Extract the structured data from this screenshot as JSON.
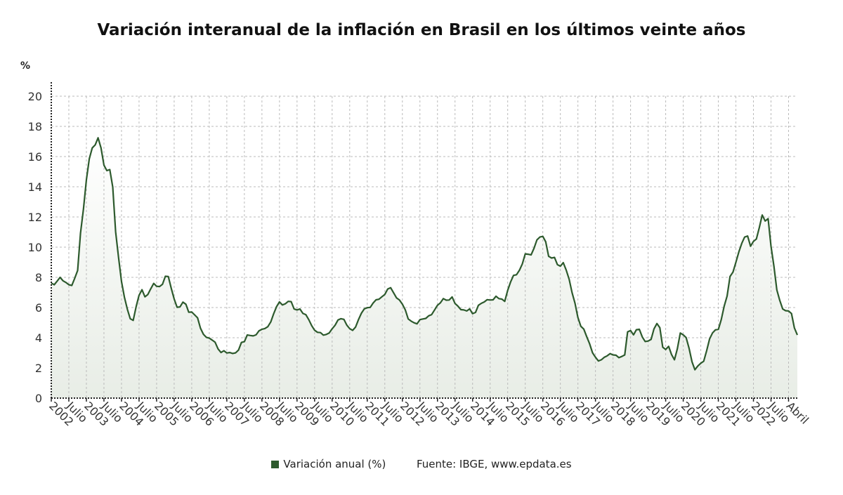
{
  "chart_data": {
    "type": "area",
    "title": "Variación interanual de la inflación en Brasil en los últimos veinte años",
    "ylabel": "%",
    "ylim": [
      0,
      20
    ],
    "yticks": [
      0,
      2,
      4,
      6,
      8,
      10,
      12,
      14,
      16,
      18,
      20
    ],
    "grid": true,
    "legend_position": "bottom",
    "start": "2002-01",
    "end": "2023-04",
    "frequency": "monthly",
    "xtick_labels": [
      "2002",
      "Julio",
      "2003",
      "Julio",
      "2004",
      "Julio",
      "2005",
      "Julio",
      "2006",
      "Julio",
      "2007",
      "Julio",
      "2008",
      "Julio",
      "2009",
      "Julio",
      "2010",
      "Julio",
      "2011",
      "Julio",
      "2012",
      "Julio",
      "2013",
      "Julio",
      "2014",
      "Julio",
      "2015",
      "Julio",
      "2016",
      "Julio",
      "2017",
      "Julio",
      "2018",
      "Julio",
      "2019",
      "Julio",
      "2020",
      "Julio",
      "2021",
      "Julio",
      "2022",
      "Julio",
      "Abril"
    ],
    "series": [
      {
        "name": "Variación anual (%)",
        "color": "#2d5a2d",
        "values": [
          7.62,
          7.51,
          7.75,
          8.0,
          7.77,
          7.66,
          7.51,
          7.46,
          7.93,
          8.45,
          10.93,
          12.53,
          14.47,
          15.85,
          16.57,
          16.77,
          17.24,
          16.57,
          15.43,
          15.07,
          15.14,
          13.98,
          11.02,
          9.3,
          7.71,
          6.69,
          5.89,
          5.26,
          5.15,
          6.06,
          6.81,
          7.18,
          6.71,
          6.86,
          7.24,
          7.6,
          7.41,
          7.39,
          7.54,
          8.07,
          8.05,
          7.27,
          6.57,
          6.02,
          6.04,
          6.36,
          6.22,
          5.69,
          5.7,
          5.51,
          5.32,
          4.63,
          4.23,
          4.03,
          3.97,
          3.84,
          3.7,
          3.26,
          3.02,
          3.14,
          2.99,
          3.02,
          2.96,
          3.0,
          3.18,
          3.69,
          3.74,
          4.18,
          4.15,
          4.12,
          4.19,
          4.46,
          4.56,
          4.61,
          4.73,
          5.04,
          5.58,
          6.06,
          6.37,
          6.17,
          6.25,
          6.41,
          6.39,
          5.9,
          5.84,
          5.9,
          5.61,
          5.53,
          5.2,
          4.8,
          4.5,
          4.36,
          4.34,
          4.17,
          4.22,
          4.31,
          4.59,
          4.83,
          5.17,
          5.26,
          5.22,
          4.84,
          4.6,
          4.49,
          4.7,
          5.2,
          5.63,
          5.91,
          5.99,
          6.01,
          6.3,
          6.51,
          6.55,
          6.71,
          6.87,
          7.23,
          7.31,
          6.97,
          6.64,
          6.5,
          6.22,
          5.85,
          5.24,
          5.1,
          4.99,
          4.92,
          5.2,
          5.24,
          5.28,
          5.45,
          5.53,
          5.84,
          6.15,
          6.31,
          6.59,
          6.49,
          6.5,
          6.7,
          6.27,
          6.09,
          5.86,
          5.84,
          5.77,
          5.91,
          5.59,
          5.68,
          6.15,
          6.28,
          6.37,
          6.52,
          6.5,
          6.51,
          6.75,
          6.59,
          6.56,
          6.41,
          7.14,
          7.7,
          8.13,
          8.17,
          8.47,
          8.89,
          9.56,
          9.53,
          9.49,
          9.93,
          10.48,
          10.67,
          10.71,
          10.36,
          9.39,
          9.28,
          9.32,
          8.84,
          8.74,
          8.97,
          8.48,
          7.87,
          6.99,
          6.29,
          5.35,
          4.76,
          4.57,
          4.08,
          3.6,
          3.0,
          2.71,
          2.46,
          2.54,
          2.7,
          2.8,
          2.95,
          2.86,
          2.84,
          2.68,
          2.76,
          2.86,
          4.39,
          4.48,
          4.19,
          4.53,
          4.56,
          4.05,
          3.75,
          3.78,
          3.89,
          4.58,
          4.94,
          4.66,
          3.37,
          3.22,
          3.43,
          2.89,
          2.54,
          3.27,
          4.31,
          4.19,
          4.01,
          3.3,
          2.4,
          1.88,
          2.13,
          2.31,
          2.44,
          3.14,
          3.92,
          4.31,
          4.52,
          4.56,
          5.2,
          6.1,
          6.76,
          8.06,
          8.35,
          8.99,
          9.68,
          10.25,
          10.67,
          10.74,
          10.06,
          10.38,
          10.54,
          11.3,
          12.13,
          11.73,
          11.89,
          10.07,
          8.73,
          7.17,
          6.47,
          5.9,
          5.79,
          5.77,
          5.6,
          4.65,
          4.18
        ]
      }
    ]
  },
  "source": "Fuente: IBGE, www.epdata.es"
}
